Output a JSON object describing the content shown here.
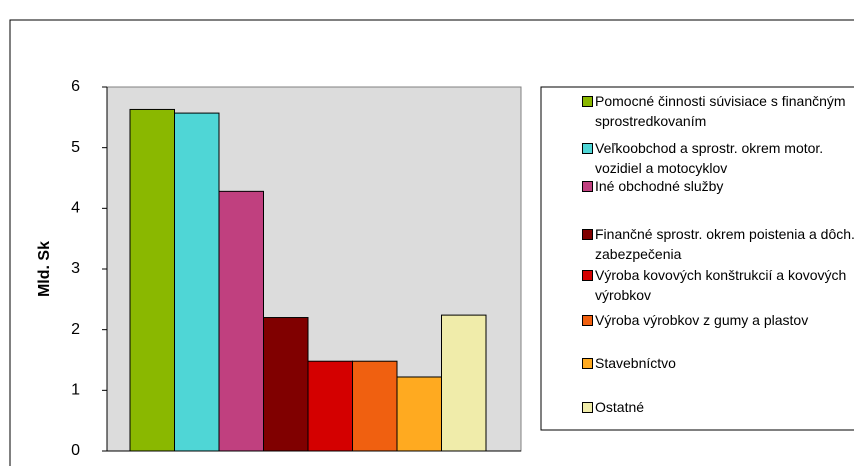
{
  "chart_data": {
    "type": "bar",
    "y_label": "Mld. Sk",
    "categories": [
      "Pomocné činnosti súvisiace s finančným sprostredkovaním",
      "Veľkoobchod a sprostr. okrem motor. vozidiel a motocyklov",
      "Iné obchodné služby",
      "Finančné sprostr. okrem poistenia a dôch. zabezpečenia",
      "Výroba kovových konštrukcií a kovových výrobkov",
      "Výroba výrobkov z gumy a plastov",
      "Stavebníctvo",
      "Ostatné"
    ],
    "values": [
      5.63,
      5.57,
      4.28,
      2.2,
      1.48,
      1.48,
      1.22,
      2.24
    ],
    "colors": [
      "#8ab800",
      "#4fd6d6",
      "#c0407f",
      "#800000",
      "#d40000",
      "#f06010",
      "#ffaa20",
      "#f0ecaa"
    ],
    "ylim": [
      0,
      6
    ],
    "yticks": [
      0,
      1,
      2,
      3,
      4,
      5,
      6
    ],
    "legend": "right"
  }
}
